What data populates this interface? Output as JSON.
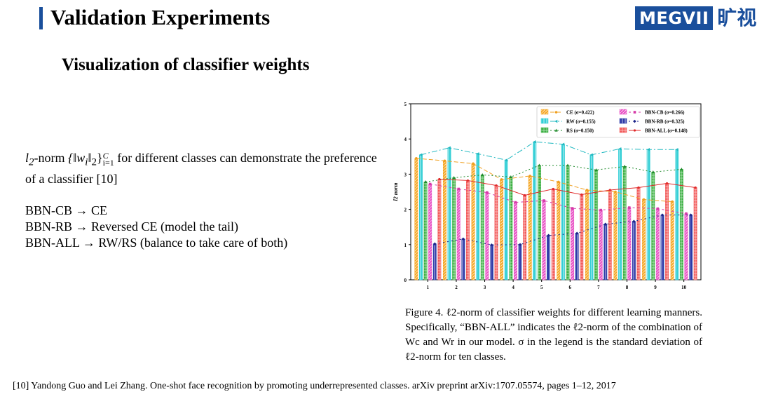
{
  "header": {
    "title": "Validation Experiments",
    "logo_text": "MEGVII",
    "logo_cn": "旷视"
  },
  "subtitle": "Visualization of classifier weights",
  "body": {
    "norm_prefix": "l",
    "norm_sub": "2",
    "norm_word": "-norm",
    "set_expr": "{‖w",
    "set_i": "i",
    "set_norm": "‖",
    "set_two": "2",
    "set_close": "}",
    "set_sup": "C",
    "set_lower": "i=1",
    "text_after": "for different classes can demonstrate the preference of a classifier [10]"
  },
  "bullets": [
    "BBN-CB → CE",
    "BBN-RB → Reversed CE (model the tail)",
    "BBN-ALL → RW/RS (balance to take care of both)"
  ],
  "caption": "Figure 4. ℓ2-norm of classifier weights for different learning manners. Specifically, “BBN-ALL” indicates the ℓ2-norm of the combination of Wc and Wr in our model. σ in the legend is the standard deviation of ℓ2-norm for ten classes.",
  "reference": "[10] Yandong Guo and Lei Zhang. One-shot face recognition by promoting underrepresented classes. arXiv preprint arXiv:1707.05574, pages 1–12, 2017",
  "chart_data": {
    "type": "bar",
    "ylabel": "l2 norm",
    "xlabel": "",
    "ylim": [
      0,
      5
    ],
    "yticks": [
      "0",
      "1",
      "2",
      "3",
      "4",
      "5"
    ],
    "categories": [
      "1",
      "2",
      "3",
      "4",
      "5",
      "6",
      "7",
      "8",
      "9",
      "10"
    ],
    "series": [
      {
        "name": "CE",
        "sigma": "(σ=0.422)",
        "color": "#f5a623",
        "line": "#f0a020",
        "marker": "circle",
        "dash": "6,3",
        "values": [
          3.45,
          3.38,
          3.3,
          2.85,
          2.95,
          2.78,
          2.55,
          2.5,
          2.28,
          2.22
        ]
      },
      {
        "name": "RW",
        "sigma": "(σ=0.155)",
        "color": "#35cfd6",
        "line": "#20b8c0",
        "marker": "triangle-left",
        "dash": "8,3,2,3",
        "values": [
          3.55,
          3.75,
          3.58,
          3.4,
          3.92,
          3.85,
          3.55,
          3.72,
          3.7,
          3.7
        ]
      },
      {
        "name": "RS",
        "sigma": "(σ=0.150)",
        "color": "#3cb043",
        "line": "#1e8a2a",
        "marker": "triangle",
        "dash": "2,3",
        "values": [
          2.78,
          2.9,
          2.98,
          2.92,
          3.25,
          3.25,
          3.12,
          3.22,
          3.06,
          3.14
        ]
      },
      {
        "name": "BBN-CB",
        "sigma": "(σ=0.266)",
        "color": "#e84fc4",
        "line": "#d63aa8",
        "marker": "square",
        "dash": "3,4",
        "values": [
          2.72,
          2.58,
          2.48,
          2.2,
          2.25,
          2.03,
          1.98,
          2.05,
          2.02,
          1.88
        ]
      },
      {
        "name": "BBN-RB",
        "sigma": "(σ=0.325)",
        "color": "#2e3aa8",
        "line": "#1a2288",
        "marker": "diamond",
        "dash": "2,4",
        "values": [
          1.02,
          1.16,
          0.99,
          1.0,
          1.26,
          1.32,
          1.58,
          1.66,
          1.84,
          1.84
        ]
      },
      {
        "name": "BBN-ALL",
        "sigma": "(σ=0.148)",
        "color": "#f25a5a",
        "line": "#e02a2a",
        "marker": "star",
        "dash": "",
        "values": [
          2.86,
          2.82,
          2.68,
          2.4,
          2.58,
          2.42,
          2.55,
          2.62,
          2.74,
          2.62
        ]
      }
    ]
  }
}
